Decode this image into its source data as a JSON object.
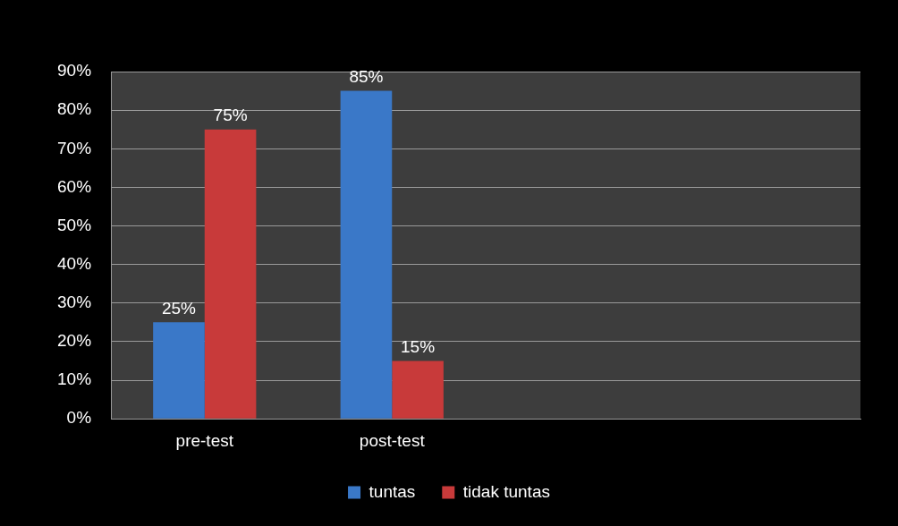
{
  "chart_data": {
    "type": "bar",
    "categories": [
      "pre-test",
      "post-test",
      null,
      null
    ],
    "series": [
      {
        "name": "tuntas",
        "color": "#3a78c8",
        "values": [
          25,
          85,
          null,
          null
        ],
        "value_labels": [
          "25%",
          "85%",
          null,
          null
        ]
      },
      {
        "name": "tidak tuntas",
        "color": "#c83a3a",
        "values": [
          75,
          15,
          null,
          null
        ],
        "value_labels": [
          "75%",
          "15%",
          null,
          null
        ]
      }
    ],
    "ylim": [
      0,
      90
    ],
    "yticks": [
      {
        "value": 0,
        "label": "0%"
      },
      {
        "value": 10,
        "label": "10%"
      },
      {
        "value": 20,
        "label": "20%"
      },
      {
        "value": 30,
        "label": "30%"
      },
      {
        "value": 40,
        "label": "40%"
      },
      {
        "value": 50,
        "label": "50%"
      },
      {
        "value": 60,
        "label": "60%"
      },
      {
        "value": 70,
        "label": "70%"
      },
      {
        "value": 80,
        "label": "80%"
      },
      {
        "value": 90,
        "label": "90%"
      }
    ],
    "grid": "y",
    "legend": "bottom"
  }
}
